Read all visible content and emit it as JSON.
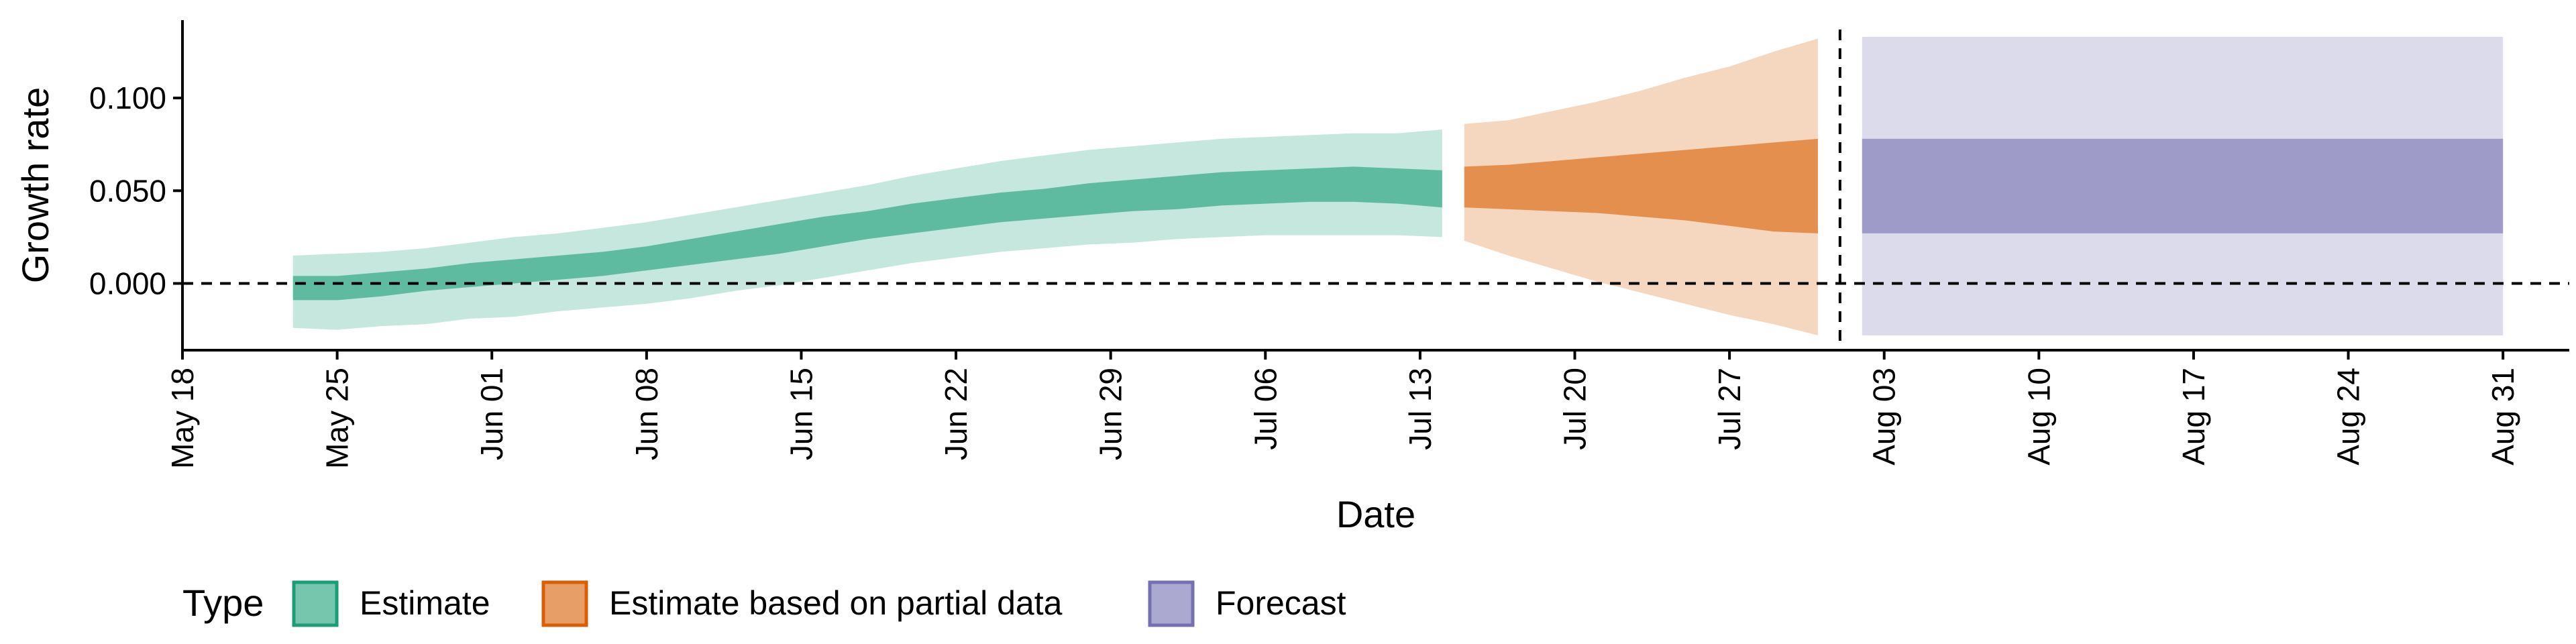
{
  "chart_data": {
    "type": "area",
    "xlabel": "Date",
    "ylabel": "Growth rate",
    "x_domain": [
      "2020-05-18",
      "2020-09-03"
    ],
    "ylim": [
      -0.036,
      0.142
    ],
    "x_ticks": [
      {
        "date": "2020-05-18",
        "label": "May 18"
      },
      {
        "date": "2020-05-25",
        "label": "May 25"
      },
      {
        "date": "2020-06-01",
        "label": "Jun 01"
      },
      {
        "date": "2020-06-08",
        "label": "Jun 08"
      },
      {
        "date": "2020-06-15",
        "label": "Jun 15"
      },
      {
        "date": "2020-06-22",
        "label": "Jun 22"
      },
      {
        "date": "2020-06-29",
        "label": "Jun 29"
      },
      {
        "date": "2020-07-06",
        "label": "Jul 06"
      },
      {
        "date": "2020-07-13",
        "label": "Jul 13"
      },
      {
        "date": "2020-07-20",
        "label": "Jul 20"
      },
      {
        "date": "2020-07-27",
        "label": "Jul 27"
      },
      {
        "date": "2020-08-03",
        "label": "Aug 03"
      },
      {
        "date": "2020-08-10",
        "label": "Aug 10"
      },
      {
        "date": "2020-08-17",
        "label": "Aug 17"
      },
      {
        "date": "2020-08-24",
        "label": "Aug 24"
      },
      {
        "date": "2020-08-31",
        "label": "Aug 31"
      }
    ],
    "y_ticks": [
      {
        "value": 0.0,
        "label": "0.000"
      },
      {
        "value": 0.05,
        "label": "0.050"
      },
      {
        "value": 0.1,
        "label": "0.100"
      }
    ],
    "hline": 0,
    "vline": "2020-08-01",
    "grid": false,
    "legend": {
      "title": "Type",
      "position": "bottom"
    },
    "series": [
      {
        "name": "Estimate",
        "color": "#1b9e77",
        "data": [
          {
            "x": "2020-05-23",
            "lo90": -0.024,
            "lo50": -0.009,
            "hi50": 0.004,
            "hi90": 0.015
          },
          {
            "x": "2020-05-25",
            "lo90": -0.025,
            "lo50": -0.009,
            "hi50": 0.004,
            "hi90": 0.016
          },
          {
            "x": "2020-05-27",
            "lo90": -0.023,
            "lo50": -0.007,
            "hi50": 0.006,
            "hi90": 0.017
          },
          {
            "x": "2020-05-29",
            "lo90": -0.022,
            "lo50": -0.004,
            "hi50": 0.008,
            "hi90": 0.019
          },
          {
            "x": "2020-05-31",
            "lo90": -0.019,
            "lo50": -0.002,
            "hi50": 0.011,
            "hi90": 0.022
          },
          {
            "x": "2020-06-02",
            "lo90": -0.018,
            "lo50": 0.0,
            "hi50": 0.013,
            "hi90": 0.025
          },
          {
            "x": "2020-06-04",
            "lo90": -0.015,
            "lo50": 0.002,
            "hi50": 0.015,
            "hi90": 0.027
          },
          {
            "x": "2020-06-06",
            "lo90": -0.013,
            "lo50": 0.004,
            "hi50": 0.017,
            "hi90": 0.03
          },
          {
            "x": "2020-06-08",
            "lo90": -0.011,
            "lo50": 0.007,
            "hi50": 0.02,
            "hi90": 0.033
          },
          {
            "x": "2020-06-10",
            "lo90": -0.008,
            "lo50": 0.01,
            "hi50": 0.024,
            "hi90": 0.037
          },
          {
            "x": "2020-06-12",
            "lo90": -0.004,
            "lo50": 0.013,
            "hi50": 0.028,
            "hi90": 0.041
          },
          {
            "x": "2020-06-14",
            "lo90": -0.001,
            "lo50": 0.016,
            "hi50": 0.032,
            "hi90": 0.045
          },
          {
            "x": "2020-06-16",
            "lo90": 0.003,
            "lo50": 0.02,
            "hi50": 0.036,
            "hi90": 0.049
          },
          {
            "x": "2020-06-18",
            "lo90": 0.007,
            "lo50": 0.024,
            "hi50": 0.039,
            "hi90": 0.053
          },
          {
            "x": "2020-06-20",
            "lo90": 0.011,
            "lo50": 0.027,
            "hi50": 0.043,
            "hi90": 0.058
          },
          {
            "x": "2020-06-22",
            "lo90": 0.014,
            "lo50": 0.03,
            "hi50": 0.046,
            "hi90": 0.062
          },
          {
            "x": "2020-06-24",
            "lo90": 0.017,
            "lo50": 0.033,
            "hi50": 0.049,
            "hi90": 0.066
          },
          {
            "x": "2020-06-26",
            "lo90": 0.019,
            "lo50": 0.035,
            "hi50": 0.051,
            "hi90": 0.069
          },
          {
            "x": "2020-06-28",
            "lo90": 0.021,
            "lo50": 0.037,
            "hi50": 0.054,
            "hi90": 0.072
          },
          {
            "x": "2020-06-30",
            "lo90": 0.022,
            "lo50": 0.039,
            "hi50": 0.056,
            "hi90": 0.074
          },
          {
            "x": "2020-07-02",
            "lo90": 0.024,
            "lo50": 0.04,
            "hi50": 0.058,
            "hi90": 0.076
          },
          {
            "x": "2020-07-04",
            "lo90": 0.025,
            "lo50": 0.042,
            "hi50": 0.06,
            "hi90": 0.078
          },
          {
            "x": "2020-07-06",
            "lo90": 0.026,
            "lo50": 0.043,
            "hi50": 0.061,
            "hi90": 0.079
          },
          {
            "x": "2020-07-08",
            "lo90": 0.026,
            "lo50": 0.044,
            "hi50": 0.062,
            "hi90": 0.08
          },
          {
            "x": "2020-07-10",
            "lo90": 0.026,
            "lo50": 0.044,
            "hi50": 0.063,
            "hi90": 0.081
          },
          {
            "x": "2020-07-12",
            "lo90": 0.026,
            "lo50": 0.043,
            "hi50": 0.062,
            "hi90": 0.081
          },
          {
            "x": "2020-07-14",
            "lo90": 0.025,
            "lo50": 0.041,
            "hi50": 0.061,
            "hi90": 0.083
          }
        ]
      },
      {
        "name": "Estimate based on partial data",
        "color": "#d95f02",
        "data": [
          {
            "x": "2020-07-15",
            "lo90": 0.023,
            "lo50": 0.041,
            "hi50": 0.063,
            "hi90": 0.086
          },
          {
            "x": "2020-07-17",
            "lo90": 0.015,
            "lo50": 0.04,
            "hi50": 0.064,
            "hi90": 0.088
          },
          {
            "x": "2020-07-19",
            "lo90": 0.008,
            "lo50": 0.039,
            "hi50": 0.066,
            "hi90": 0.093
          },
          {
            "x": "2020-07-21",
            "lo90": 0.001,
            "lo50": 0.038,
            "hi50": 0.068,
            "hi90": 0.098
          },
          {
            "x": "2020-07-23",
            "lo90": -0.005,
            "lo50": 0.036,
            "hi50": 0.07,
            "hi90": 0.104
          },
          {
            "x": "2020-07-25",
            "lo90": -0.011,
            "lo50": 0.034,
            "hi50": 0.072,
            "hi90": 0.111
          },
          {
            "x": "2020-07-27",
            "lo90": -0.017,
            "lo50": 0.031,
            "hi50": 0.074,
            "hi90": 0.117
          },
          {
            "x": "2020-07-29",
            "lo90": -0.022,
            "lo50": 0.028,
            "hi50": 0.076,
            "hi90": 0.125
          },
          {
            "x": "2020-07-31",
            "lo90": -0.028,
            "lo50": 0.027,
            "hi50": 0.078,
            "hi90": 0.132
          }
        ]
      },
      {
        "name": "Forecast",
        "color": "#7570b3",
        "data": [
          {
            "x": "2020-08-02",
            "lo90": -0.028,
            "lo50": 0.027,
            "hi50": 0.078,
            "hi90": 0.133
          },
          {
            "x": "2020-08-31",
            "lo90": -0.028,
            "lo50": 0.027,
            "hi50": 0.078,
            "hi90": 0.133
          }
        ]
      }
    ]
  }
}
